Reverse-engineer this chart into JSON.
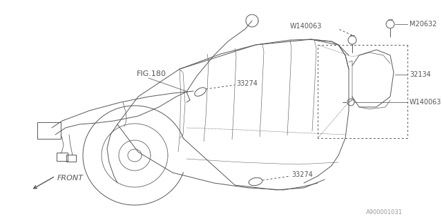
{
  "bg_color": "#ffffff",
  "line_color": "#555555",
  "fig_width": 6.4,
  "fig_height": 3.2,
  "dpi": 100,
  "label_texts": {
    "FIG180": "FIG.180",
    "33274_top": "33274",
    "33274_bot": "33274",
    "W140063_top": "W140063",
    "M20632": "M20632",
    "32134": "32134",
    "W140063_bot": "W140063",
    "FRONT": "FRONT",
    "A900001031": "A900001031"
  },
  "font_size": 7,
  "font_size_small": 6
}
